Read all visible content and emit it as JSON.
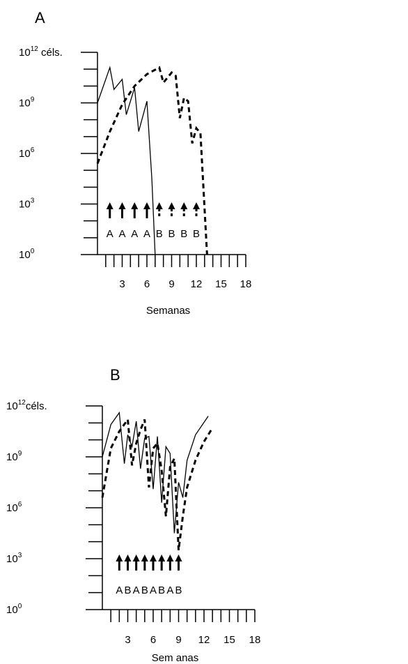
{
  "chart_data": [
    {
      "type": "line",
      "panel_label": "A",
      "xlabel": "Semanas",
      "ylabel": "",
      "y_scale": "log10",
      "xlim": [
        0,
        18
      ],
      "ylim_log10": [
        0,
        12
      ],
      "x_tick_labels": [
        "3",
        "6",
        "9",
        "12",
        "15",
        "18"
      ],
      "y_tick_labels": [
        {
          "base": "10",
          "exp": "12",
          "suffix": " céls."
        },
        {
          "base": "10",
          "exp": "9",
          "suffix": ""
        },
        {
          "base": "10",
          "exp": "6",
          "suffix": ""
        },
        {
          "base": "10",
          "exp": "3",
          "suffix": ""
        },
        {
          "base": "10",
          "exp": "0",
          "suffix": ""
        }
      ],
      "series": [
        {
          "style": "solid",
          "x": [
            0,
            1.5,
            2,
            3,
            3.5,
            4.5,
            5,
            6,
            6.6,
            7
          ],
          "log10_y": [
            9,
            11.1,
            9.8,
            10.4,
            8.3,
            9.9,
            7.3,
            9.1,
            4.5,
            0
          ]
        },
        {
          "style": "dashed",
          "x": [
            0,
            1.5,
            3,
            4.5,
            6,
            7.5,
            8,
            9,
            9.5,
            10,
            10.5,
            11,
            11.5,
            12,
            12.5,
            13.3
          ],
          "log10_y": [
            5.4,
            7.3,
            8.9,
            10,
            10.7,
            11.1,
            10.2,
            10.8,
            10.6,
            8.1,
            9.3,
            9.1,
            6.6,
            7.5,
            7.2,
            0
          ]
        }
      ],
      "arrows": [
        {
          "x": 1.5,
          "label": "A",
          "style": "solid"
        },
        {
          "x": 3,
          "label": "A",
          "style": "solid"
        },
        {
          "x": 4.5,
          "label": "A",
          "style": "solid"
        },
        {
          "x": 6,
          "label": "A",
          "style": "solid"
        },
        {
          "x": 7.5,
          "label": "B",
          "style": "dashed"
        },
        {
          "x": 9,
          "label": "B",
          "style": "dashed"
        },
        {
          "x": 10.5,
          "label": "B",
          "style": "dashed"
        },
        {
          "x": 12,
          "label": "B",
          "style": "dashed"
        }
      ]
    },
    {
      "type": "line",
      "panel_label": "B",
      "xlabel": "Sem anas",
      "ylabel": "",
      "y_scale": "log10",
      "xlim": [
        0,
        18
      ],
      "ylim_log10": [
        0,
        12
      ],
      "x_tick_labels": [
        "3",
        "6",
        "9",
        "12",
        "15",
        "18"
      ],
      "y_tick_labels": [
        {
          "base": "10",
          "exp": "12",
          "suffix": "céls."
        },
        {
          "base": "10",
          "exp": "9",
          "suffix": ""
        },
        {
          "base": "10",
          "exp": "6",
          "suffix": ""
        },
        {
          "base": "10",
          "exp": "3",
          "suffix": ""
        },
        {
          "base": "10",
          "exp": "0",
          "suffix": ""
        }
      ],
      "series": [
        {
          "style": "solid",
          "x": [
            0,
            1,
            2,
            2.6,
            3,
            3.5,
            4,
            4.5,
            5,
            5.5,
            6,
            6.5,
            7,
            7.5,
            8,
            8.5,
            9,
            9.5,
            10,
            11,
            12.5
          ],
          "log10_y": [
            9,
            10.9,
            11.6,
            8.6,
            10.3,
            9.6,
            11.1,
            8.3,
            10.1,
            10.2,
            7.1,
            10.2,
            6.3,
            9.6,
            9.2,
            4.5,
            7.5,
            6.6,
            8.8,
            10.3,
            11.4
          ]
        },
        {
          "style": "dashed",
          "x": [
            0,
            1,
            2,
            3,
            3.5,
            4,
            4.5,
            5,
            5.5,
            6,
            6.5,
            7,
            7.5,
            8,
            8.5,
            9,
            9.5,
            10,
            11,
            12,
            13
          ],
          "log10_y": [
            6.6,
            9.5,
            10.5,
            11.2,
            8.5,
            9.8,
            10.6,
            11.2,
            7.2,
            9.5,
            9.8,
            8.2,
            5.5,
            8.4,
            8.9,
            3.5,
            5.5,
            7.2,
            8.8,
            9.9,
            10.7
          ]
        }
      ],
      "arrows": [
        {
          "x": 2,
          "label": "A"
        },
        {
          "x": 3,
          "label": "B"
        },
        {
          "x": 4,
          "label": "A"
        },
        {
          "x": 5,
          "label": "B"
        },
        {
          "x": 6,
          "label": "A"
        },
        {
          "x": 7,
          "label": "B"
        },
        {
          "x": 8,
          "label": "A"
        },
        {
          "x": 9,
          "label": "B"
        }
      ]
    }
  ]
}
